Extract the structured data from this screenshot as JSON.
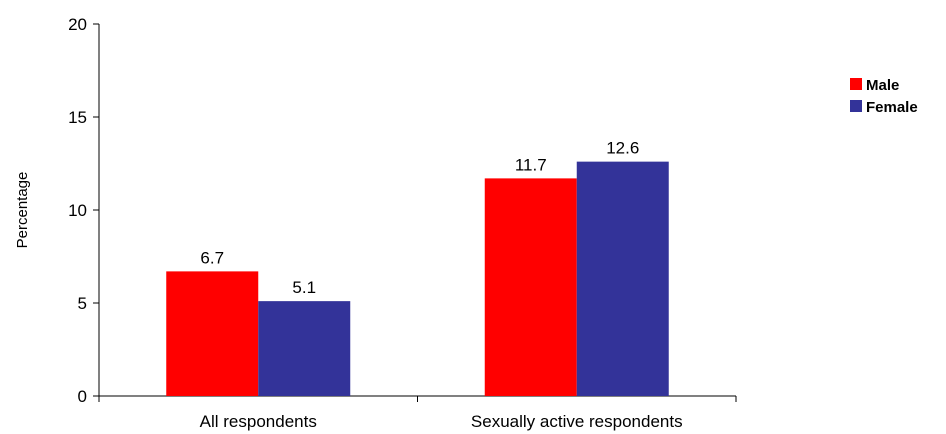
{
  "chart_data": {
    "type": "bar",
    "title": "",
    "xlabel": "",
    "ylabel": "Percentage",
    "ylim": [
      0,
      20
    ],
    "yticks": [
      0,
      5,
      10,
      15,
      20
    ],
    "grid": false,
    "legend_position": "right",
    "categories": [
      "All respondents",
      "Sexually active respondents"
    ],
    "series": [
      {
        "name": "Male",
        "values": [
          6.7,
          11.7
        ],
        "color": "#ff0000"
      },
      {
        "name": "Female",
        "values": [
          5.1,
          12.6
        ],
        "color": "#333399"
      }
    ],
    "data_labels": [
      [
        "6.7",
        "11.7"
      ],
      [
        "5.1",
        "12.6"
      ]
    ]
  }
}
